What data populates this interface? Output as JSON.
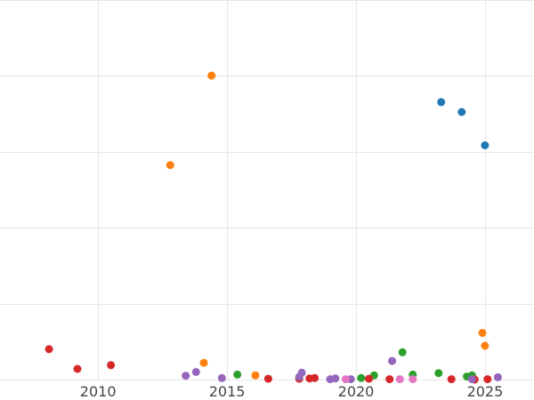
{
  "chart_data": {
    "type": "scatter",
    "title": "",
    "xlabel": "",
    "ylabel": "",
    "xlim": [
      2006.2,
      2026.9
    ],
    "ylim": [
      0,
      100
    ],
    "x_ticks": [
      2010,
      2015,
      2020,
      2025
    ],
    "x_tick_labels": [
      "2010",
      "2015",
      "2020",
      "2025"
    ],
    "y_gridlines": [
      0,
      20,
      40,
      60,
      80,
      100
    ],
    "grid": true,
    "legend": "none",
    "series": [
      {
        "color": "#1f77b4",
        "points": [
          {
            "x": 2023.3,
            "y": 73.1
          },
          {
            "x": 2024.1,
            "y": 70.5
          },
          {
            "x": 2025.0,
            "y": 61.7
          }
        ]
      },
      {
        "color": "#ff7f0e",
        "points": [
          {
            "x": 2014.4,
            "y": 80.1
          },
          {
            "x": 2012.8,
            "y": 56.5
          },
          {
            "x": 2014.1,
            "y": 4.4
          },
          {
            "x": 2016.1,
            "y": 1.1
          },
          {
            "x": 2024.9,
            "y": 12.3
          },
          {
            "x": 2025.0,
            "y": 8.9
          }
        ]
      },
      {
        "color": "#2ca02c",
        "points": [
          {
            "x": 2015.4,
            "y": 1.3
          },
          {
            "x": 2020.2,
            "y": 0.4
          },
          {
            "x": 2020.7,
            "y": 1.1
          },
          {
            "x": 2021.8,
            "y": 7.2
          },
          {
            "x": 2022.2,
            "y": 1.3
          },
          {
            "x": 2023.2,
            "y": 1.7
          },
          {
            "x": 2024.3,
            "y": 0.8
          },
          {
            "x": 2024.5,
            "y": 1.1
          }
        ]
      },
      {
        "color": "#d62728",
        "points": [
          {
            "x": 2008.1,
            "y": 8.0
          },
          {
            "x": 2009.2,
            "y": 2.8
          },
          {
            "x": 2010.5,
            "y": 3.8
          },
          {
            "x": 2016.6,
            "y": 0.2
          },
          {
            "x": 2017.8,
            "y": 0.2
          },
          {
            "x": 2018.2,
            "y": 0.3
          },
          {
            "x": 2018.4,
            "y": 0.4
          },
          {
            "x": 2020.5,
            "y": 0.2
          },
          {
            "x": 2021.3,
            "y": 0.1
          },
          {
            "x": 2023.7,
            "y": 0.1
          },
          {
            "x": 2024.6,
            "y": 0.0
          },
          {
            "x": 2025.1,
            "y": 0.1
          }
        ]
      },
      {
        "color": "#9467bd",
        "points": [
          {
            "x": 2013.4,
            "y": 1.0
          },
          {
            "x": 2013.8,
            "y": 2.0
          },
          {
            "x": 2014.8,
            "y": 0.4
          },
          {
            "x": 2017.9,
            "y": 1.8
          },
          {
            "x": 2017.8,
            "y": 0.7
          },
          {
            "x": 2019.0,
            "y": 0.1
          },
          {
            "x": 2019.2,
            "y": 0.3
          },
          {
            "x": 2019.8,
            "y": 0.1
          },
          {
            "x": 2021.4,
            "y": 4.9
          },
          {
            "x": 2024.5,
            "y": 0.1
          },
          {
            "x": 2025.5,
            "y": 0.6
          }
        ]
      },
      {
        "color": "#e377c2",
        "points": [
          {
            "x": 2019.6,
            "y": 0.1
          },
          {
            "x": 2021.7,
            "y": 0.1
          },
          {
            "x": 2022.2,
            "y": 0.1
          }
        ]
      }
    ]
  }
}
